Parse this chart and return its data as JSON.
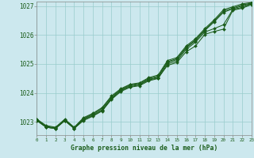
{
  "title": "Graphe pression niveau de la mer (hPa)",
  "bg_color": "#cce8ee",
  "grid_color": "#99cccc",
  "line_color": "#1a5c1a",
  "xlim": [
    0,
    23
  ],
  "ylim": [
    1022.55,
    1027.15
  ],
  "yticks": [
    1023,
    1024,
    1025,
    1026,
    1027
  ],
  "xtick_labels": [
    "0",
    "1",
    "2",
    "3",
    "4",
    "5",
    "6",
    "7",
    "8",
    "9",
    "10",
    "11",
    "12",
    "13",
    "14",
    "15",
    "16",
    "17",
    "18",
    "19",
    "20",
    "21",
    "22",
    "23"
  ],
  "xticks": [
    0,
    1,
    2,
    3,
    4,
    5,
    6,
    7,
    8,
    9,
    10,
    11,
    12,
    13,
    14,
    15,
    16,
    17,
    18,
    19,
    20,
    21,
    22,
    23
  ],
  "series": [
    [
      1023.05,
      1022.82,
      1022.78,
      1023.05,
      1022.78,
      1023.05,
      1023.2,
      1023.38,
      1023.78,
      1024.05,
      1024.2,
      1024.25,
      1024.42,
      1024.5,
      1025.0,
      1025.1,
      1025.5,
      1025.75,
      1026.1,
      1026.22,
      1026.35,
      1026.88,
      1026.95,
      1027.07
    ],
    [
      1023.05,
      1022.82,
      1022.78,
      1023.05,
      1022.78,
      1023.1,
      1023.25,
      1023.43,
      1023.83,
      1024.1,
      1024.25,
      1024.3,
      1024.47,
      1024.55,
      1025.05,
      1025.15,
      1025.55,
      1025.8,
      1026.15,
      1026.45,
      1026.78,
      1026.9,
      1027.0,
      1027.08
    ],
    [
      1023.08,
      1022.85,
      1022.8,
      1023.08,
      1022.8,
      1023.12,
      1023.28,
      1023.47,
      1023.87,
      1024.12,
      1024.28,
      1024.33,
      1024.5,
      1024.58,
      1025.08,
      1025.18,
      1025.58,
      1025.83,
      1026.18,
      1026.48,
      1026.82,
      1026.93,
      1027.03,
      1027.1
    ],
    [
      1023.1,
      1022.88,
      1022.82,
      1023.1,
      1022.82,
      1023.15,
      1023.3,
      1023.5,
      1023.9,
      1024.15,
      1024.3,
      1024.35,
      1024.53,
      1024.62,
      1025.12,
      1025.22,
      1025.62,
      1025.87,
      1026.22,
      1026.52,
      1026.87,
      1026.97,
      1027.07,
      1027.12
    ]
  ],
  "series_outlier": [
    1023.1,
    1022.82,
    1022.78,
    1023.05,
    1022.78,
    1023.08,
    1023.22,
    1023.4,
    1023.8,
    1024.08,
    1024.22,
    1024.28,
    1024.45,
    1024.52,
    1024.95,
    1025.05,
    1025.42,
    1025.62,
    1026.02,
    1026.12,
    1026.2,
    1026.85,
    1026.92,
    1027.05
  ]
}
